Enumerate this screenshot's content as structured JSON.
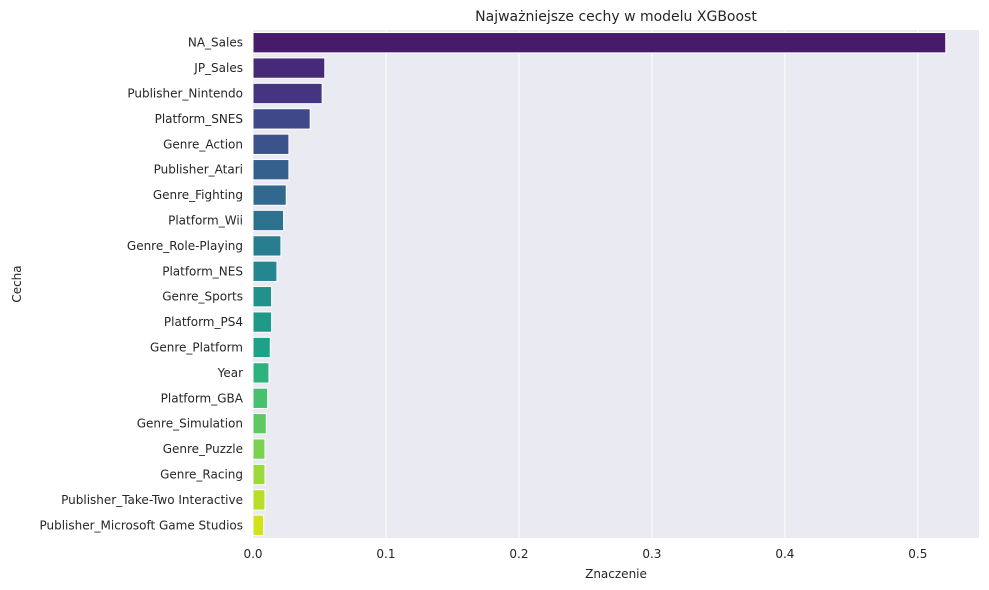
{
  "chart_data": {
    "type": "bar",
    "orientation": "horizontal",
    "title": "Najważniejsze cechy w modelu XGBoost",
    "xlabel": "Znaczenie",
    "ylabel": "Cecha",
    "xlim": [
      0,
      0.546
    ],
    "xticks": [
      0.0,
      0.1,
      0.2,
      0.3,
      0.4,
      0.5
    ],
    "xtick_labels": [
      "0.0",
      "0.1",
      "0.2",
      "0.3",
      "0.4",
      "0.5"
    ],
    "grid": true,
    "categories": [
      "NA_Sales",
      "JP_Sales",
      "Publisher_Nintendo",
      "Platform_SNES",
      "Genre_Action",
      "Publisher_Atari",
      "Genre_Fighting",
      "Platform_Wii",
      "Genre_Role-Playing",
      "Platform_NES",
      "Genre_Sports",
      "Platform_PS4",
      "Genre_Platform",
      "Year",
      "Platform_GBA",
      "Genre_Simulation",
      "Genre_Puzzle",
      "Genre_Racing",
      "Publisher_Take-Two Interactive",
      "Publisher_Microsoft Game Studios"
    ],
    "values": [
      0.521,
      0.054,
      0.052,
      0.043,
      0.027,
      0.027,
      0.025,
      0.023,
      0.021,
      0.018,
      0.014,
      0.014,
      0.013,
      0.012,
      0.011,
      0.01,
      0.009,
      0.009,
      0.009,
      0.008
    ],
    "colors": [
      "#481a6c",
      "#482878",
      "#453581",
      "#3f4889",
      "#3b528b",
      "#355f8d",
      "#31688e",
      "#2c728e",
      "#287d8e",
      "#24868e",
      "#21918c",
      "#1f9a8a",
      "#1fa187",
      "#2db27d",
      "#48c16e",
      "#5ec962",
      "#7ad151",
      "#9bd93c",
      "#b8de29",
      "#d2e21b"
    ],
    "plot_background": "#eaeaf2",
    "grid_color": "#ffffff"
  }
}
